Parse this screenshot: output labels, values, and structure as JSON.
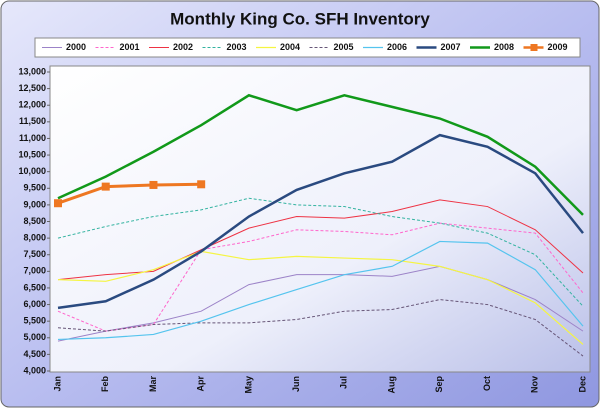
{
  "chart_data": {
    "type": "line",
    "title": "Monthly King Co. SFH Inventory",
    "categories": [
      "Jan",
      "Feb",
      "Mar",
      "Apr",
      "May",
      "Jun",
      "Jul",
      "Aug",
      "Sep",
      "Oct",
      "Nov",
      "Dec"
    ],
    "ylim": [
      4000,
      13000
    ],
    "yticks": [
      {
        "value": 4000,
        "label": "4,000"
      },
      {
        "value": 4500,
        "label": "4,500"
      },
      {
        "value": 5000,
        "label": "5,000"
      },
      {
        "value": 5500,
        "label": "5,500"
      },
      {
        "value": 6000,
        "label": "6,000"
      },
      {
        "value": 6500,
        "label": "6,500"
      },
      {
        "value": 7000,
        "label": "7,000"
      },
      {
        "value": 7500,
        "label": "7,500"
      },
      {
        "value": 8000,
        "label": "8,000"
      },
      {
        "value": 8500,
        "label": "8,500"
      },
      {
        "value": 9000,
        "label": "9,000"
      },
      {
        "value": 9500,
        "label": "9,500"
      },
      {
        "value": 10000,
        "label": "10,000"
      },
      {
        "value": 10500,
        "label": "10,500"
      },
      {
        "value": 11000,
        "label": "11,000"
      },
      {
        "value": 11500,
        "label": "11,500"
      },
      {
        "value": 12000,
        "label": "12,000"
      },
      {
        "value": 12500,
        "label": "12,500"
      },
      {
        "value": 13000,
        "label": "13,000"
      }
    ],
    "legend": "top",
    "series": [
      {
        "name": "2000",
        "color": "#9c83c8",
        "width": 1,
        "dash": false,
        "values": [
          4900,
          5200,
          5450,
          5800,
          6600,
          6900,
          6900,
          6850,
          7150,
          6750,
          6150,
          5200
        ]
      },
      {
        "name": "2001",
        "color": "#ff66cc",
        "width": 1,
        "dash": true,
        "values": [
          5800,
          5200,
          5400,
          7650,
          7900,
          8250,
          8200,
          8100,
          8450,
          8300,
          8150,
          6350
        ]
      },
      {
        "name": "2002",
        "color": "#ee3344",
        "width": 1,
        "dash": false,
        "values": [
          6750,
          6900,
          7000,
          7650,
          8300,
          8650,
          8600,
          8800,
          9150,
          8950,
          8250,
          6950
        ]
      },
      {
        "name": "2003",
        "color": "#33b3a0",
        "width": 1,
        "dash": true,
        "values": [
          8000,
          8350,
          8650,
          8850,
          9200,
          9000,
          8950,
          8650,
          8450,
          8150,
          7500,
          5950
        ]
      },
      {
        "name": "2004",
        "color": "#f5f542",
        "width": 1.2,
        "dash": false,
        "values": [
          6750,
          6700,
          7050,
          7600,
          7350,
          7450,
          7400,
          7350,
          7150,
          6750,
          6050,
          4800
        ]
      },
      {
        "name": "2005",
        "color": "#665577",
        "width": 1,
        "dash": true,
        "values": [
          5300,
          5200,
          5400,
          5450,
          5450,
          5550,
          5800,
          5850,
          6150,
          6000,
          5550,
          4450
        ]
      },
      {
        "name": "2006",
        "color": "#55c4ee",
        "width": 1.2,
        "dash": false,
        "values": [
          4950,
          5000,
          5100,
          5500,
          6000,
          6450,
          6900,
          7150,
          7900,
          7850,
          7050,
          5350
        ]
      },
      {
        "name": "2007",
        "color": "#2a4a80",
        "width": 2.5,
        "dash": false,
        "values": [
          5900,
          6100,
          6750,
          7600,
          8650,
          9450,
          9950,
          10300,
          11100,
          10750,
          9950,
          8150
        ]
      },
      {
        "name": "2008",
        "color": "#11991a",
        "width": 2.5,
        "dash": false,
        "values": [
          9200,
          9850,
          10600,
          11400,
          12300,
          11850,
          12300,
          11950,
          11600,
          11050,
          10150,
          8700
        ]
      },
      {
        "name": "2009",
        "color": "#ee7722",
        "width": 3,
        "dash": false,
        "marker": "square",
        "values": [
          9050,
          9550,
          9600,
          9620,
          null,
          null,
          null,
          null,
          null,
          null,
          null,
          null
        ]
      }
    ]
  }
}
